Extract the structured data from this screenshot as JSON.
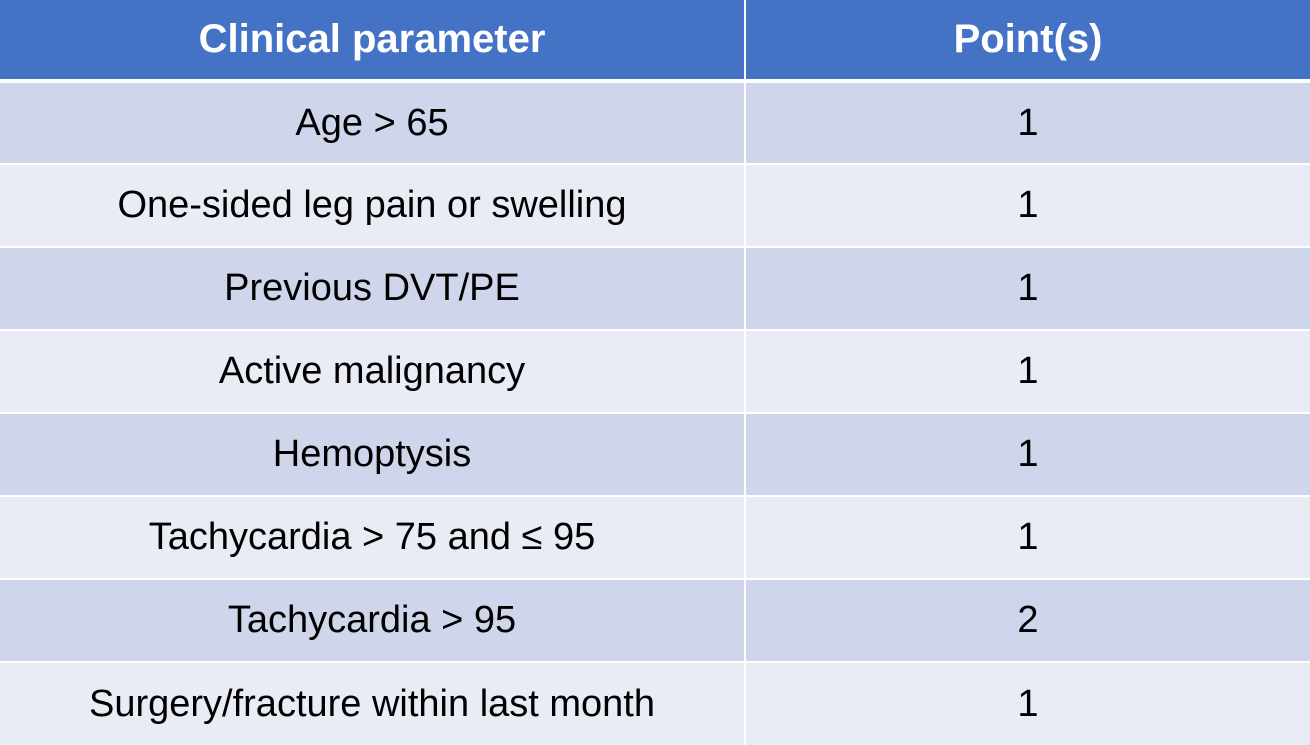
{
  "table": {
    "headers": [
      "Clinical parameter",
      "Point(s)"
    ],
    "rows": [
      {
        "parameter": "Age > 65",
        "points": "1"
      },
      {
        "parameter": "One-sided leg pain or swelling",
        "points": "1"
      },
      {
        "parameter": "Previous DVT/PE",
        "points": "1"
      },
      {
        "parameter": "Active malignancy",
        "points": "1"
      },
      {
        "parameter": "Hemoptysis",
        "points": "1"
      },
      {
        "parameter": "Tachycardia > 75 and ≤ 95",
        "points": "1"
      },
      {
        "parameter": "Tachycardia > 95",
        "points": "2"
      },
      {
        "parameter": "Surgery/fracture within last month",
        "points": "1"
      }
    ]
  },
  "colors": {
    "header_bg": "#4472c4",
    "row_band_dark": "#cfd5ea",
    "row_band_light": "#e9ebf5"
  }
}
